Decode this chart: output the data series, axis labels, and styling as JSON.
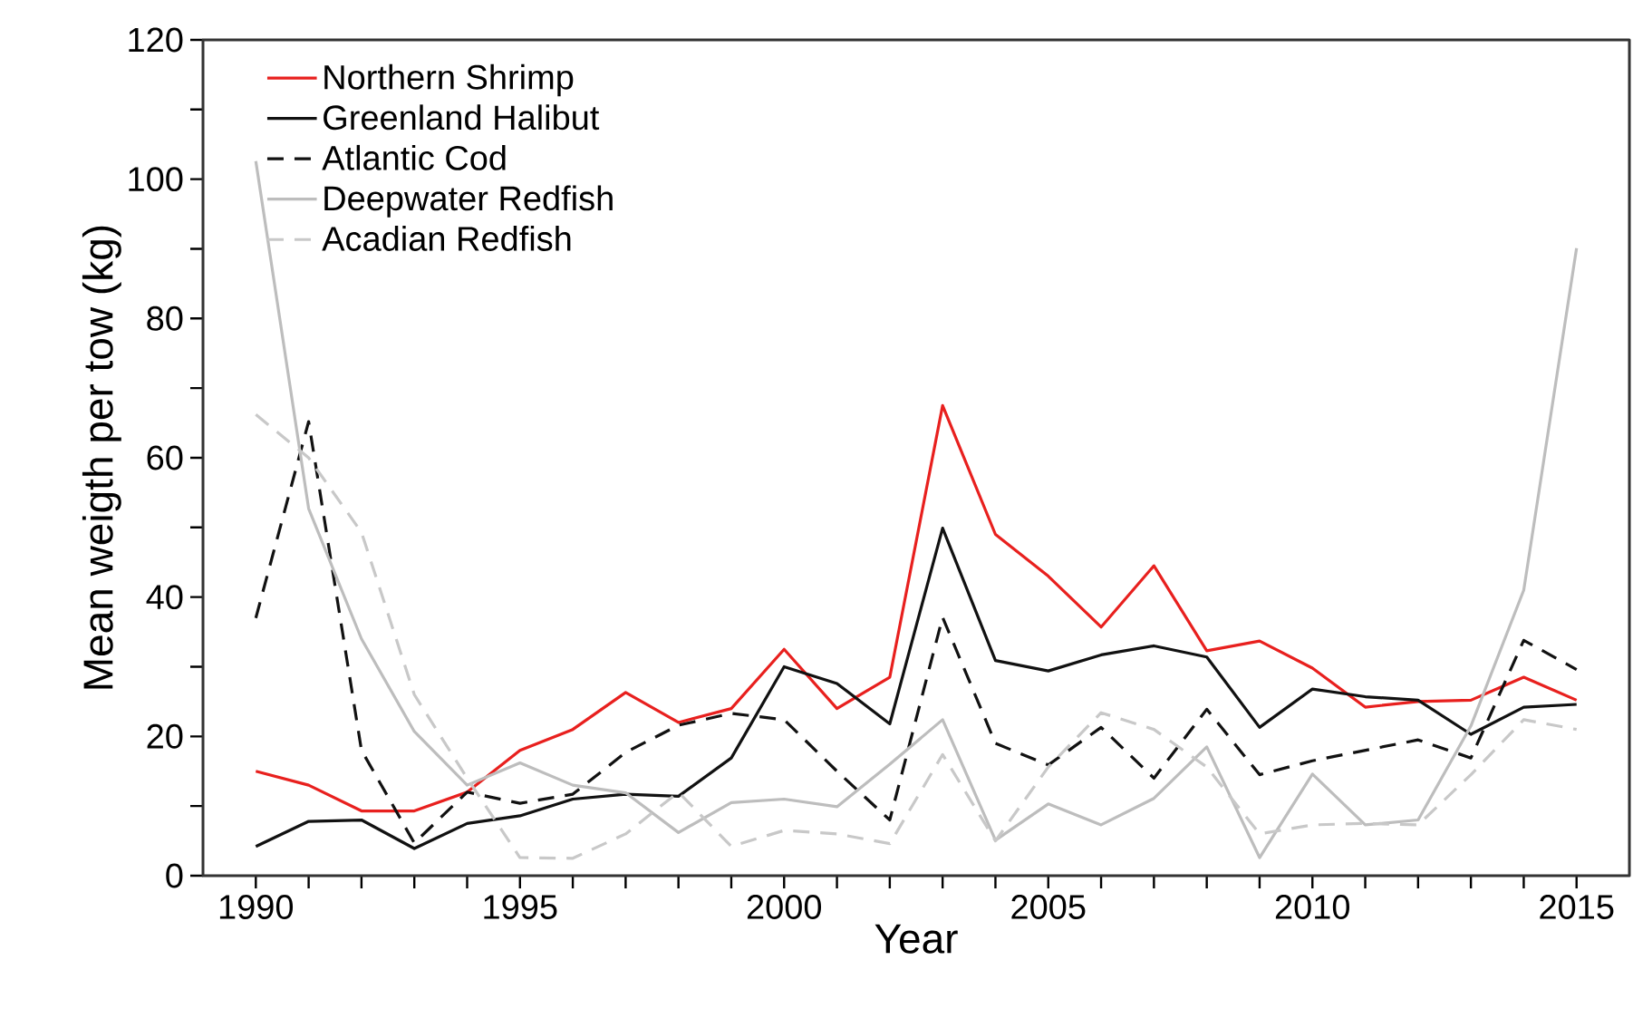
{
  "chart_data": {
    "type": "line",
    "xlabel": "Year",
    "ylabel": "Mean weigth per tow (kg)",
    "x": [
      1990,
      1991,
      1992,
      1993,
      1994,
      1995,
      1996,
      1997,
      1998,
      1999,
      2000,
      2001,
      2002,
      2003,
      2004,
      2005,
      2006,
      2007,
      2008,
      2009,
      2010,
      2011,
      2012,
      2013,
      2014,
      2015
    ],
    "series": [
      {
        "name": "Northern Shrimp",
        "color": "#e8201e",
        "line_style": "solid",
        "values": [
          15,
          13,
          9.3,
          9.3,
          12,
          18,
          21,
          26.3,
          22,
          24,
          32.5,
          24,
          28.5,
          67.5,
          49,
          43,
          35.7,
          44.5,
          32.3,
          33.7,
          29.8,
          24.2,
          25,
          25.2,
          28.5,
          25.2
        ]
      },
      {
        "name": "Greenland Halibut",
        "color": "#111111",
        "line_style": "solid",
        "values": [
          4.2,
          7.8,
          8,
          3.9,
          7.5,
          8.6,
          11,
          11.7,
          11.4,
          16.9,
          30,
          27.6,
          21.8,
          49.9,
          30.9,
          29.4,
          31.7,
          33,
          31.4,
          21.3,
          26.8,
          25.7,
          25.2,
          20.3,
          24.2,
          24.6
        ]
      },
      {
        "name": "Atlantic Cod",
        "color": "#111111",
        "line_style": "dashed",
        "values": [
          37,
          65.2,
          18,
          4.7,
          12,
          10.4,
          11.7,
          17.7,
          21.6,
          23.3,
          22.4,
          15,
          8,
          37.1,
          19,
          15.9,
          21.3,
          14,
          23.9,
          14.5,
          16.5,
          18,
          19.5,
          16.9,
          33.8,
          29.6
        ]
      },
      {
        "name": "Deepwater Redfish",
        "color": "#bdbdbd",
        "line_style": "solid",
        "values": [
          102.6,
          52.7,
          34,
          20.7,
          13,
          16.2,
          13,
          11.9,
          6.2,
          10.5,
          11,
          9.9,
          16,
          22.4,
          5.1,
          10.3,
          7.3,
          11.1,
          18.5,
          2.6,
          14.6,
          7.3,
          8,
          21.5,
          41,
          90.1
        ]
      },
      {
        "name": "Acadian Redfish",
        "color": "#c8c8c8",
        "line_style": "dashed",
        "values": [
          66.2,
          60,
          49.3,
          26,
          14,
          2.6,
          2.5,
          6,
          12,
          4.2,
          6.5,
          6,
          4.6,
          17.4,
          5,
          15.6,
          23.4,
          21,
          15.6,
          6,
          7.3,
          7.5,
          7.3,
          14.5,
          22.4,
          21
        ]
      }
    ],
    "xlim": [
      1989,
      2016
    ],
    "ylim": [
      0,
      120
    ],
    "xticks": [
      1990,
      {
        "value": 1991,
        "label": null
      },
      {
        "value": 1992,
        "label": null
      },
      {
        "value": 1993,
        "label": null
      },
      {
        "value": 1994,
        "label": null
      },
      1995,
      {
        "value": 1996,
        "label": null
      },
      {
        "value": 1997,
        "label": null
      },
      {
        "value": 1998,
        "label": null
      },
      {
        "value": 1999,
        "label": null
      },
      2000,
      {
        "value": 2001,
        "label": null
      },
      {
        "value": 2002,
        "label": null
      },
      {
        "value": 2003,
        "label": null
      },
      {
        "value": 2004,
        "label": null
      },
      2005,
      {
        "value": 2006,
        "label": null
      },
      {
        "value": 2007,
        "label": null
      },
      {
        "value": 2008,
        "label": null
      },
      {
        "value": 2009,
        "label": null
      },
      2010,
      {
        "value": 2011,
        "label": null
      },
      {
        "value": 2012,
        "label": null
      },
      {
        "value": 2013,
        "label": null
      },
      {
        "value": 2014,
        "label": null
      },
      2015
    ],
    "yticks": [
      0,
      {
        "value": 10,
        "label": null
      },
      20,
      {
        "value": 30,
        "label": null
      },
      40,
      {
        "value": 50,
        "label": null
      },
      60,
      {
        "value": 70,
        "label": null
      },
      80,
      {
        "value": 90,
        "label": null
      },
      100,
      {
        "value": 110,
        "label": null
      },
      120
    ],
    "grid": false,
    "legend": "top left",
    "marker": "none"
  }
}
